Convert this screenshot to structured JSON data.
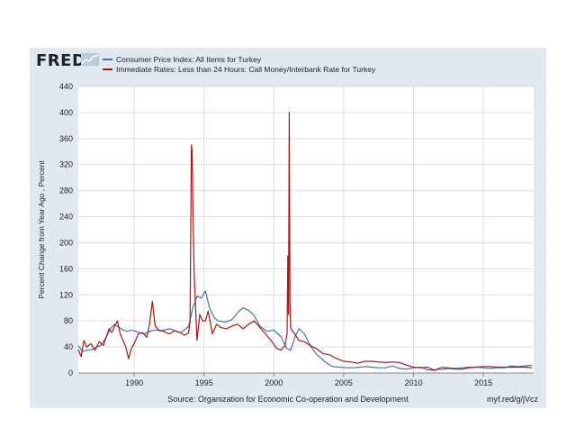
{
  "header": {
    "logo_text": "FRED"
  },
  "colors": {
    "frame_bg": "#e1e9f0",
    "plot_bg": "#ffffff",
    "grid": "#dddddd",
    "axis_text": "#222222",
    "series_cpi": "#4572a7",
    "series_rate": "#aa1616"
  },
  "footer": {
    "source": "Source: Organization for Economic Co-operation and Development",
    "link": "myf.red/g/jVcz"
  },
  "chart_data": {
    "type": "line",
    "title": "",
    "xlabel": "",
    "ylabel": "Percent Change from Year Ago , Percent",
    "xlim": [
      1986.0,
      2018.6
    ],
    "ylim": [
      0,
      440
    ],
    "x_ticks": [
      1990,
      1995,
      2000,
      2005,
      2010,
      2015
    ],
    "x_tick_labels": [
      "1990",
      "1995",
      "2000",
      "2005",
      "2010",
      "2015"
    ],
    "y_ticks": [
      0,
      40,
      80,
      120,
      160,
      200,
      240,
      280,
      320,
      360,
      400,
      440
    ],
    "y_tick_labels": [
      "0",
      "40",
      "80",
      "120",
      "160",
      "200",
      "240",
      "280",
      "320",
      "360",
      "400",
      "440"
    ],
    "grid": true,
    "legend_position": "top",
    "series": [
      {
        "name": "Consumer Price Index: All Items for Turkey",
        "color": "#4572a7",
        "x": [
          1986.0,
          1986.3,
          1986.6,
          1987.0,
          1987.3,
          1987.6,
          1988.0,
          1988.3,
          1988.6,
          1988.9,
          1989.2,
          1989.5,
          1989.8,
          1990.1,
          1990.4,
          1990.7,
          1991.0,
          1991.3,
          1991.6,
          1992.0,
          1992.3,
          1992.6,
          1993.0,
          1993.3,
          1993.6,
          1993.9,
          1994.2,
          1994.5,
          1994.8,
          1995.1,
          1995.4,
          1995.7,
          1996.0,
          1996.5,
          1997.0,
          1997.5,
          1997.8,
          1998.2,
          1998.6,
          1999.0,
          1999.5,
          2000.0,
          2000.5,
          2000.9,
          2001.2,
          2001.5,
          2001.8,
          2002.2,
          2002.6,
          2003.0,
          2003.4,
          2003.8,
          2004.2,
          2004.7,
          2005.2,
          2005.7,
          2006.2,
          2006.6,
          2007.0,
          2007.5,
          2008.0,
          2008.5,
          2009.0,
          2009.5,
          2010.0,
          2010.5,
          2011.0,
          2011.5,
          2012.0,
          2012.5,
          2013.0,
          2013.5,
          2014.0,
          2014.5,
          2015.0,
          2015.5,
          2016.0,
          2016.5,
          2017.0,
          2017.5,
          2018.0,
          2018.5
        ],
        "values": [
          42,
          33,
          35,
          36,
          40,
          42,
          55,
          68,
          75,
          70,
          66,
          64,
          66,
          64,
          62,
          60,
          63,
          65,
          66,
          65,
          67,
          68,
          64,
          62,
          66,
          72,
          100,
          118,
          115,
          126,
          100,
          86,
          80,
          78,
          82,
          95,
          100,
          96,
          88,
          72,
          64,
          66,
          56,
          38,
          35,
          55,
          68,
          60,
          42,
          30,
          22,
          15,
          10,
          9,
          8,
          8,
          9,
          10,
          9,
          8,
          8,
          11,
          7,
          6,
          8,
          9,
          5,
          4,
          9,
          8,
          7,
          8,
          9,
          9,
          8,
          7,
          8,
          8,
          11,
          10,
          11,
          12
        ]
      },
      {
        "name": "Immediate Rates: Less than 24 Hours: Call Money/Interbank Rate for Turkey",
        "color": "#aa1616",
        "x": [
          1986.0,
          1986.2,
          1986.4,
          1986.6,
          1986.9,
          1987.2,
          1987.5,
          1987.8,
          1988.0,
          1988.2,
          1988.4,
          1988.6,
          1988.8,
          1989.0,
          1989.2,
          1989.4,
          1989.6,
          1989.8,
          1990.0,
          1990.3,
          1990.6,
          1990.9,
          1991.1,
          1991.3,
          1991.5,
          1991.8,
          1992.1,
          1992.5,
          1992.9,
          1993.3,
          1993.6,
          1993.9,
          1994.0,
          1994.05,
          1994.1,
          1994.15,
          1994.2,
          1994.3,
          1994.5,
          1994.7,
          1994.9,
          1995.1,
          1995.3,
          1995.6,
          1995.9,
          1996.2,
          1996.6,
          1997.0,
          1997.4,
          1997.8,
          1998.2,
          1998.6,
          1999.0,
          1999.4,
          1999.8,
          2000.2,
          2000.5,
          2000.8,
          2000.95,
          2001.0,
          2001.05,
          2001.1,
          2001.15,
          2001.2,
          2001.3,
          2001.5,
          2001.8,
          2002.2,
          2002.6,
          2003.0,
          2003.5,
          2004.0,
          2004.5,
          2005.0,
          2005.5,
          2006.0,
          2006.5,
          2007.0,
          2007.5,
          2008.0,
          2008.5,
          2009.0,
          2009.5,
          2010.0,
          2010.5,
          2011.0,
          2011.2,
          2011.4,
          2011.6,
          2011.8,
          2012.0,
          2012.5,
          2013.0,
          2013.5,
          2014.0,
          2014.5,
          2015.0,
          2015.5,
          2016.0,
          2016.5,
          2017.0,
          2017.5,
          2018.0,
          2018.5
        ],
        "values": [
          36,
          25,
          50,
          40,
          45,
          35,
          48,
          42,
          55,
          68,
          62,
          72,
          80,
          60,
          50,
          40,
          22,
          38,
          45,
          60,
          62,
          55,
          75,
          110,
          72,
          65,
          64,
          60,
          65,
          62,
          58,
          62,
          80,
          210,
          350,
          340,
          260,
          150,
          50,
          90,
          80,
          80,
          95,
          60,
          75,
          70,
          68,
          72,
          75,
          68,
          75,
          80,
          70,
          60,
          50,
          38,
          35,
          42,
          60,
          180,
          90,
          400,
          110,
          70,
          65,
          60,
          50,
          48,
          42,
          38,
          30,
          28,
          22,
          18,
          17,
          15,
          18,
          18,
          17,
          16,
          17,
          16,
          12,
          9,
          8,
          9,
          7,
          5,
          5,
          6,
          6,
          7,
          6,
          6,
          8,
          9,
          10,
          10,
          9,
          9,
          9,
          9,
          9,
          8
        ]
      }
    ]
  }
}
